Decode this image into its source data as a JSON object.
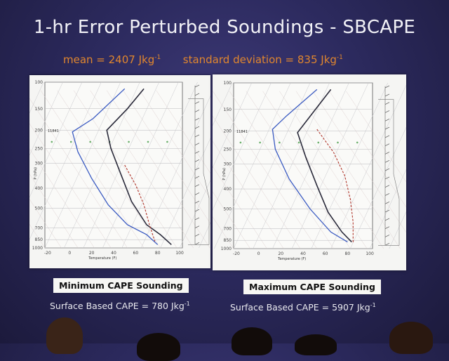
{
  "slide": {
    "title": "1-hr Error Perturbed Soundings - SBCAPE",
    "mean_label": "mean = 2407 Jkg",
    "mean_exp": "-1",
    "sd_label": "standard deviation = 835 Jkg",
    "sd_exp": "-1"
  },
  "panels": [
    {
      "caption": "Minimum CAPE Sounding",
      "cape_label": "Surface Based CAPE = 780 Jkg",
      "cape_exp": "-1",
      "marker": "11841"
    },
    {
      "caption": "Maximum CAPE Sounding",
      "cape_label": "Surface Based CAPE = 5907 Jkg",
      "cape_exp": "-1",
      "marker": "11841"
    }
  ],
  "axes": {
    "y_label": "P (hPa)",
    "x_label": "Temperature (F)",
    "pressure_ticks": [
      "100",
      "150",
      "200",
      "250",
      "300",
      "400",
      "500",
      "700",
      "850",
      "1000"
    ],
    "temp_ticks": [
      "-20",
      "0",
      "20",
      "40",
      "60",
      "80",
      "100"
    ]
  },
  "colors": {
    "temperature": "#2a2a3a",
    "dewpoint": "#3b5bc2",
    "parcel": "#b0352a",
    "title": "#f2f2f7",
    "stats": "#e0862e"
  }
}
